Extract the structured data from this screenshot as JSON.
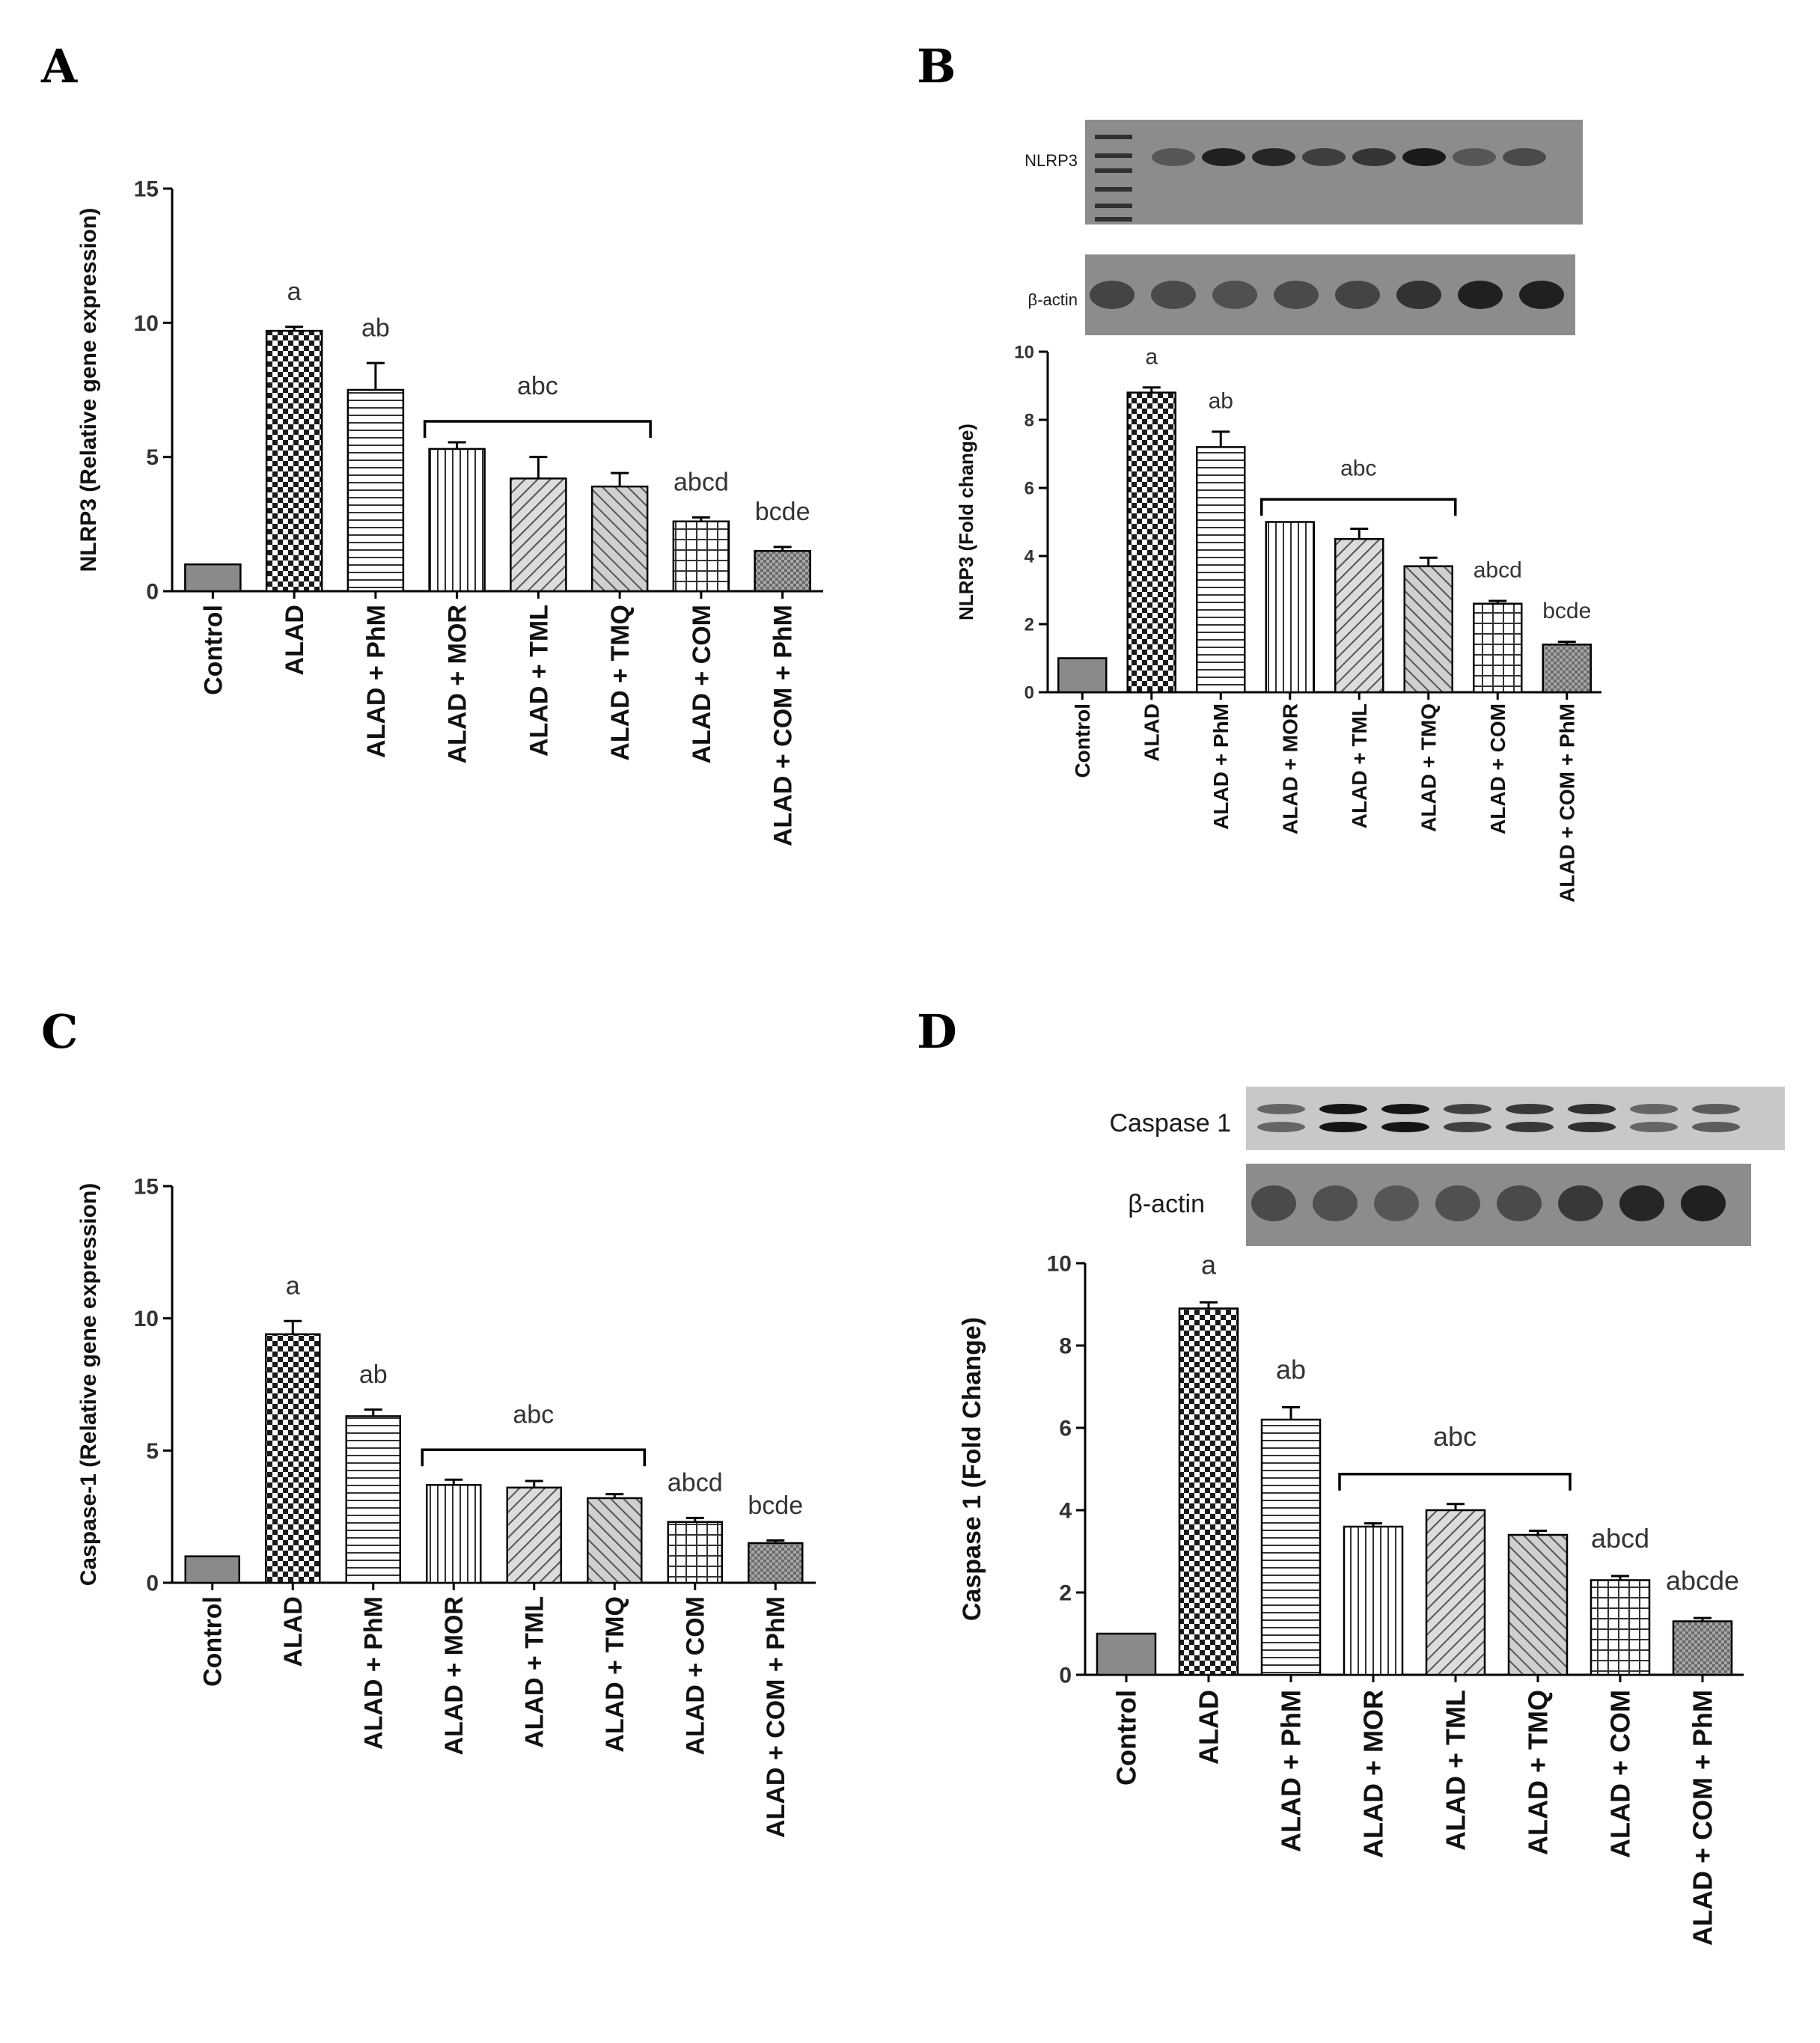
{
  "colors": {
    "bar_edge": "#000000",
    "control_fill": "#8a8a8a",
    "blot_bg": "#8c8c8c",
    "blot_bg_light": "#c8c8c8",
    "band": "#141414",
    "text": "#1a1a1a"
  },
  "blots": {
    "B": {
      "top_label": "NLRP3",
      "bottom_label": "β-actin"
    },
    "D": {
      "top_label": "Caspase 1",
      "bottom_label": "β-actin"
    }
  },
  "chart_data": [
    {
      "panel": "A",
      "type": "bar",
      "ylabel": "NLRP3 (Relative gene expression)",
      "ylim": [
        0,
        15
      ],
      "yticks": [
        0,
        5,
        10,
        15
      ],
      "categories": [
        "Control",
        "ALAD",
        "ALAD + PhM",
        "ALAD + MOR",
        "ALAD + TML",
        "ALAD + TMQ",
        "ALAD + COM",
        "ALAD + COM + PhM"
      ],
      "values": [
        1.0,
        9.7,
        7.5,
        5.3,
        4.2,
        3.9,
        2.6,
        1.5
      ],
      "errors": [
        0.05,
        0.15,
        1.0,
        0.25,
        0.8,
        0.5,
        0.15,
        0.15
      ],
      "patterns": [
        "solid",
        "checker",
        "hstripe",
        "vstripe",
        "diag",
        "diag2",
        "grid",
        "dots"
      ],
      "significance": [
        "",
        "a",
        "ab",
        "",
        "",
        "",
        "abcd",
        "bcde"
      ],
      "bracket": {
        "from": 3,
        "to": 5,
        "label": "abc"
      }
    },
    {
      "panel": "B",
      "type": "bar",
      "ylabel": "NLRP3 (Fold change)",
      "ylim": [
        0,
        10
      ],
      "yticks": [
        0,
        2,
        4,
        6,
        8,
        10
      ],
      "categories": [
        "Control",
        "ALAD",
        "ALAD + PhM",
        "ALAD + MOR",
        "ALAD + TML",
        "ALAD + TMQ",
        "ALAD + COM",
        "ALAD + COM + PhM"
      ],
      "values": [
        1.0,
        8.8,
        7.2,
        5.0,
        4.5,
        3.7,
        2.6,
        1.4
      ],
      "errors": [
        0.05,
        0.15,
        0.45,
        0.05,
        0.3,
        0.25,
        0.08,
        0.08
      ],
      "patterns": [
        "solid",
        "checker",
        "hstripe",
        "vstripe",
        "diag",
        "diag2",
        "grid",
        "dots"
      ],
      "significance": [
        "",
        "a",
        "ab",
        "",
        "",
        "",
        "abcd",
        "bcde"
      ],
      "bracket": {
        "from": 3,
        "to": 5,
        "label": "abc"
      }
    },
    {
      "panel": "C",
      "type": "bar",
      "ylabel": "Caspase-1 (Relative gene expression)",
      "ylim": [
        0,
        15
      ],
      "yticks": [
        0,
        5,
        10,
        15
      ],
      "categories": [
        "Control",
        "ALAD",
        "ALAD + PhM",
        "ALAD + MOR",
        "ALAD + TML",
        "ALAD + TMQ",
        "ALAD + COM",
        "ALAD + COM + PhM"
      ],
      "values": [
        1.0,
        9.4,
        6.3,
        3.7,
        3.6,
        3.2,
        2.3,
        1.5
      ],
      "errors": [
        0.05,
        0.5,
        0.25,
        0.2,
        0.25,
        0.15,
        0.15,
        0.1
      ],
      "patterns": [
        "solid",
        "checker",
        "hstripe",
        "vstripe",
        "diag",
        "diag2",
        "grid",
        "dots"
      ],
      "significance": [
        "",
        "a",
        "ab",
        "",
        "",
        "",
        "abcd",
        "bcde"
      ],
      "bracket": {
        "from": 3,
        "to": 5,
        "label": "abc"
      }
    },
    {
      "panel": "D",
      "type": "bar",
      "ylabel": "Caspase 1 (Fold Change)",
      "ylim": [
        0,
        10
      ],
      "yticks": [
        0,
        2,
        4,
        6,
        8,
        10
      ],
      "categories": [
        "Control",
        "ALAD",
        "ALAD + PhM",
        "ALAD + MOR",
        "ALAD + TML",
        "ALAD + TMQ",
        "ALAD + COM",
        "ALAD + COM + PhM"
      ],
      "values": [
        1.0,
        8.9,
        6.2,
        3.6,
        4.0,
        3.4,
        2.3,
        1.3
      ],
      "errors": [
        0.05,
        0.15,
        0.3,
        0.08,
        0.15,
        0.1,
        0.1,
        0.08
      ],
      "patterns": [
        "solid",
        "checker",
        "hstripe",
        "vstripe",
        "diag",
        "diag2",
        "grid",
        "dots"
      ],
      "significance": [
        "",
        "a",
        "ab",
        "",
        "",
        "",
        "abcd",
        "abcde"
      ],
      "bracket": {
        "from": 3,
        "to": 5,
        "label": "abc"
      }
    }
  ]
}
